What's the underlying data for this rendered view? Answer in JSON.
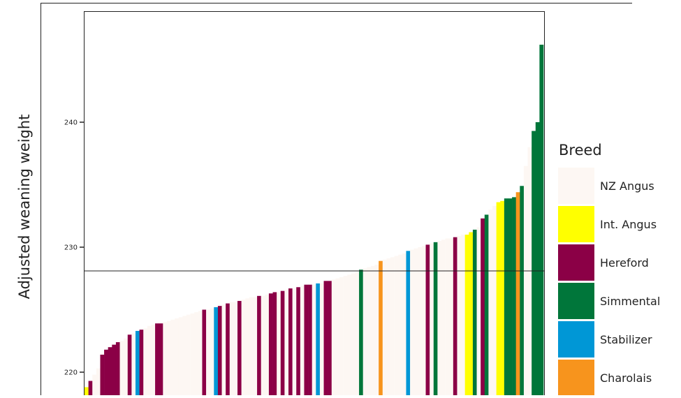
{
  "chart_data": {
    "type": "bar",
    "ylabel": "Adjusted weaning weight",
    "xlabel": "",
    "ylim": [
      218,
      247
    ],
    "yticks": [
      220,
      230,
      240
    ],
    "grid": false,
    "reference_line": 228.1,
    "legend": {
      "title": "Breed",
      "placement": "right",
      "entries": [
        {
          "name": "NZ Angus",
          "color": "#fdf7f3"
        },
        {
          "name": "Int. Angus",
          "color": "#ffff00"
        },
        {
          "name": "Hereford",
          "color": "#8b0046"
        },
        {
          "name": "Simmental",
          "color": "#00763a"
        },
        {
          "name": "Stabilizer",
          "color": "#0097d6"
        },
        {
          "name": "Charolais",
          "color": "#f7941d"
        }
      ]
    },
    "bars": [
      {
        "v": 218.8,
        "b": "Int. Angus"
      },
      {
        "v": 219.3,
        "b": "Hereford"
      },
      {
        "v": 219.8,
        "b": "NZ Angus"
      },
      {
        "v": 220.3,
        "b": "NZ Angus"
      },
      {
        "v": 221.4,
        "b": "Hereford"
      },
      {
        "v": 221.8,
        "b": "Hereford"
      },
      {
        "v": 222.0,
        "b": "Hereford"
      },
      {
        "v": 222.2,
        "b": "Hereford"
      },
      {
        "v": 222.4,
        "b": "Hereford"
      },
      {
        "v": 222.5,
        "b": "NZ Angus"
      },
      {
        "v": 222.7,
        "b": "NZ Angus"
      },
      {
        "v": 223.0,
        "b": "Hereford"
      },
      {
        "v": 223.1,
        "b": "NZ Angus"
      },
      {
        "v": 223.3,
        "b": "Stabilizer"
      },
      {
        "v": 223.4,
        "b": "Hereford"
      },
      {
        "v": 223.5,
        "b": "NZ Angus"
      },
      {
        "v": 223.7,
        "b": "NZ Angus"
      },
      {
        "v": 223.8,
        "b": "NZ Angus"
      },
      {
        "v": 223.9,
        "b": "Hereford"
      },
      {
        "v": 223.9,
        "b": "Hereford"
      },
      {
        "v": 224.0,
        "b": "NZ Angus"
      },
      {
        "v": 224.1,
        "b": "NZ Angus"
      },
      {
        "v": 224.2,
        "b": "NZ Angus"
      },
      {
        "v": 224.3,
        "b": "NZ Angus"
      },
      {
        "v": 224.4,
        "b": "NZ Angus"
      },
      {
        "v": 224.5,
        "b": "NZ Angus"
      },
      {
        "v": 224.6,
        "b": "NZ Angus"
      },
      {
        "v": 224.7,
        "b": "NZ Angus"
      },
      {
        "v": 224.8,
        "b": "NZ Angus"
      },
      {
        "v": 224.9,
        "b": "NZ Angus"
      },
      {
        "v": 225.0,
        "b": "Hereford"
      },
      {
        "v": 225.0,
        "b": "NZ Angus"
      },
      {
        "v": 225.1,
        "b": "NZ Angus"
      },
      {
        "v": 225.2,
        "b": "Stabilizer"
      },
      {
        "v": 225.3,
        "b": "Hereford"
      },
      {
        "v": 225.4,
        "b": "NZ Angus"
      },
      {
        "v": 225.5,
        "b": "Hereford"
      },
      {
        "v": 225.6,
        "b": "NZ Angus"
      },
      {
        "v": 225.6,
        "b": "NZ Angus"
      },
      {
        "v": 225.7,
        "b": "Hereford"
      },
      {
        "v": 225.8,
        "b": "NZ Angus"
      },
      {
        "v": 225.9,
        "b": "NZ Angus"
      },
      {
        "v": 226.0,
        "b": "NZ Angus"
      },
      {
        "v": 226.0,
        "b": "NZ Angus"
      },
      {
        "v": 226.1,
        "b": "Hereford"
      },
      {
        "v": 226.1,
        "b": "NZ Angus"
      },
      {
        "v": 226.2,
        "b": "NZ Angus"
      },
      {
        "v": 226.3,
        "b": "Hereford"
      },
      {
        "v": 226.4,
        "b": "Hereford"
      },
      {
        "v": 226.4,
        "b": "NZ Angus"
      },
      {
        "v": 226.5,
        "b": "Hereford"
      },
      {
        "v": 226.6,
        "b": "NZ Angus"
      },
      {
        "v": 226.7,
        "b": "Hereford"
      },
      {
        "v": 226.7,
        "b": "NZ Angus"
      },
      {
        "v": 226.8,
        "b": "Hereford"
      },
      {
        "v": 226.9,
        "b": "NZ Angus"
      },
      {
        "v": 227.0,
        "b": "Hereford"
      },
      {
        "v": 227.0,
        "b": "Hereford"
      },
      {
        "v": 227.0,
        "b": "NZ Angus"
      },
      {
        "v": 227.1,
        "b": "Stabilizer"
      },
      {
        "v": 227.1,
        "b": "NZ Angus"
      },
      {
        "v": 227.3,
        "b": "Hereford"
      },
      {
        "v": 227.3,
        "b": "Hereford"
      },
      {
        "v": 227.4,
        "b": "NZ Angus"
      },
      {
        "v": 227.5,
        "b": "NZ Angus"
      },
      {
        "v": 227.6,
        "b": "NZ Angus"
      },
      {
        "v": 227.7,
        "b": "NZ Angus"
      },
      {
        "v": 227.8,
        "b": "NZ Angus"
      },
      {
        "v": 227.9,
        "b": "NZ Angus"
      },
      {
        "v": 228.0,
        "b": "NZ Angus"
      },
      {
        "v": 228.2,
        "b": "Simmental"
      },
      {
        "v": 228.3,
        "b": "NZ Angus"
      },
      {
        "v": 228.4,
        "b": "NZ Angus"
      },
      {
        "v": 228.5,
        "b": "NZ Angus"
      },
      {
        "v": 228.6,
        "b": "NZ Angus"
      },
      {
        "v": 228.9,
        "b": "Charolais"
      },
      {
        "v": 229.0,
        "b": "NZ Angus"
      },
      {
        "v": 229.1,
        "b": "NZ Angus"
      },
      {
        "v": 229.2,
        "b": "NZ Angus"
      },
      {
        "v": 229.3,
        "b": "NZ Angus"
      },
      {
        "v": 229.4,
        "b": "NZ Angus"
      },
      {
        "v": 229.5,
        "b": "NZ Angus"
      },
      {
        "v": 229.7,
        "b": "Stabilizer"
      },
      {
        "v": 229.8,
        "b": "NZ Angus"
      },
      {
        "v": 229.9,
        "b": "NZ Angus"
      },
      {
        "v": 230.0,
        "b": "NZ Angus"
      },
      {
        "v": 230.1,
        "b": "NZ Angus"
      },
      {
        "v": 230.2,
        "b": "Hereford"
      },
      {
        "v": 230.3,
        "b": "NZ Angus"
      },
      {
        "v": 230.4,
        "b": "Simmental"
      },
      {
        "v": 230.5,
        "b": "NZ Angus"
      },
      {
        "v": 230.6,
        "b": "NZ Angus"
      },
      {
        "v": 230.7,
        "b": "NZ Angus"
      },
      {
        "v": 230.7,
        "b": "NZ Angus"
      },
      {
        "v": 230.8,
        "b": "Hereford"
      },
      {
        "v": 230.9,
        "b": "NZ Angus"
      },
      {
        "v": 231.0,
        "b": "NZ Angus"
      },
      {
        "v": 231.0,
        "b": "Int. Angus"
      },
      {
        "v": 231.2,
        "b": "Int. Angus"
      },
      {
        "v": 231.4,
        "b": "Simmental"
      },
      {
        "v": 231.6,
        "b": "NZ Angus"
      },
      {
        "v": 232.3,
        "b": "Hereford"
      },
      {
        "v": 232.6,
        "b": "Simmental"
      },
      {
        "v": 233.0,
        "b": "NZ Angus"
      },
      {
        "v": 233.3,
        "b": "NZ Angus"
      },
      {
        "v": 233.6,
        "b": "Int. Angus"
      },
      {
        "v": 233.7,
        "b": "Int. Angus"
      },
      {
        "v": 233.9,
        "b": "Simmental"
      },
      {
        "v": 233.9,
        "b": "Simmental"
      },
      {
        "v": 234.0,
        "b": "Simmental"
      },
      {
        "v": 234.4,
        "b": "Charolais"
      },
      {
        "v": 234.9,
        "b": "Simmental"
      },
      {
        "v": 236.5,
        "b": "NZ Angus"
      },
      {
        "v": 238.0,
        "b": "NZ Angus"
      },
      {
        "v": 239.3,
        "b": "Simmental"
      },
      {
        "v": 240.0,
        "b": "Simmental"
      },
      {
        "v": 246.2,
        "b": "Simmental"
      }
    ]
  }
}
